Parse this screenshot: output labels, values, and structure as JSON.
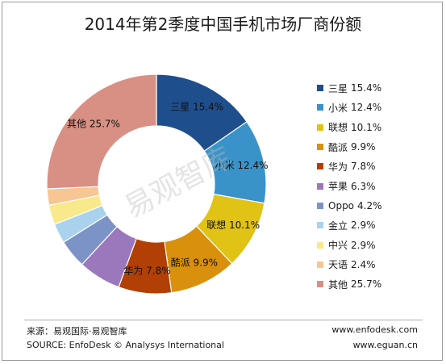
{
  "title": "2014年第2季度中国手机市场厂商份额",
  "watermark": "易观智库",
  "chart_data": {
    "type": "pie",
    "variant": "donut",
    "title": "2014年第2季度中国手机市场厂商份额",
    "legend_position": "right",
    "slices": [
      {
        "label": "三星",
        "value": 15.4,
        "display": "15.4%",
        "color": "#1f4e8c"
      },
      {
        "label": "小米",
        "value": 12.4,
        "display": "12.4%",
        "color": "#3a93c8"
      },
      {
        "label": "联想",
        "value": 10.1,
        "display": "10.1%",
        "color": "#e0c315"
      },
      {
        "label": "酷派",
        "value": 9.9,
        "display": "9.9%",
        "color": "#d9900c"
      },
      {
        "label": "华为",
        "value": 7.8,
        "display": "7.8%",
        "color": "#b23f04"
      },
      {
        "label": "苹果",
        "value": 6.3,
        "display": "6.3%",
        "color": "#9b78bb"
      },
      {
        "label": "Oppo",
        "value": 4.2,
        "display": "4.2%",
        "color": "#7b93c7"
      },
      {
        "label": "金立",
        "value": 2.9,
        "display": "2.9%",
        "color": "#a9d3ec"
      },
      {
        "label": "中兴",
        "value": 2.9,
        "display": "2.9%",
        "color": "#f8e98a"
      },
      {
        "label": "天语",
        "value": 2.4,
        "display": "2.4%",
        "color": "#f7c693"
      },
      {
        "label": "其他",
        "value": 25.7,
        "display": "25.7%",
        "color": "#d99084"
      }
    ]
  },
  "footer": {
    "source_cn": "来源：易观国际·易观智库",
    "source_en": "SOURCE: EnfoDesk © Analysys International",
    "url1": "www.enfodesk.com",
    "url2": "www.eguan.cn"
  }
}
